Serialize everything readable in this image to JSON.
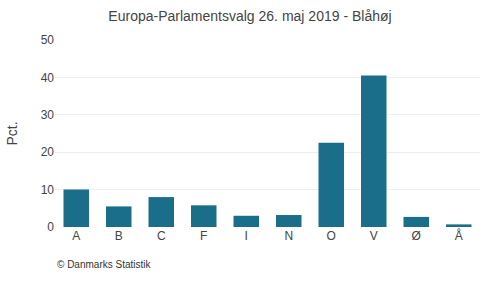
{
  "chart_data": {
    "type": "bar",
    "title": "Europa-Parlamentsvalg 26. maj 2019 - Blåhøj",
    "categories": [
      "A",
      "B",
      "C",
      "F",
      "I",
      "N",
      "O",
      "V",
      "Ø",
      "Å"
    ],
    "values": [
      10.0,
      5.5,
      8.0,
      5.8,
      3.0,
      3.2,
      22.5,
      40.5,
      2.7,
      0.7
    ],
    "color": "#1a6e8a",
    "ylabel": "Pct.",
    "ylim": [
      0,
      50
    ],
    "yticks": [
      0,
      10,
      20,
      30,
      40,
      50
    ],
    "grid": true,
    "annotations": [
      "© Danmarks Statistik"
    ]
  }
}
